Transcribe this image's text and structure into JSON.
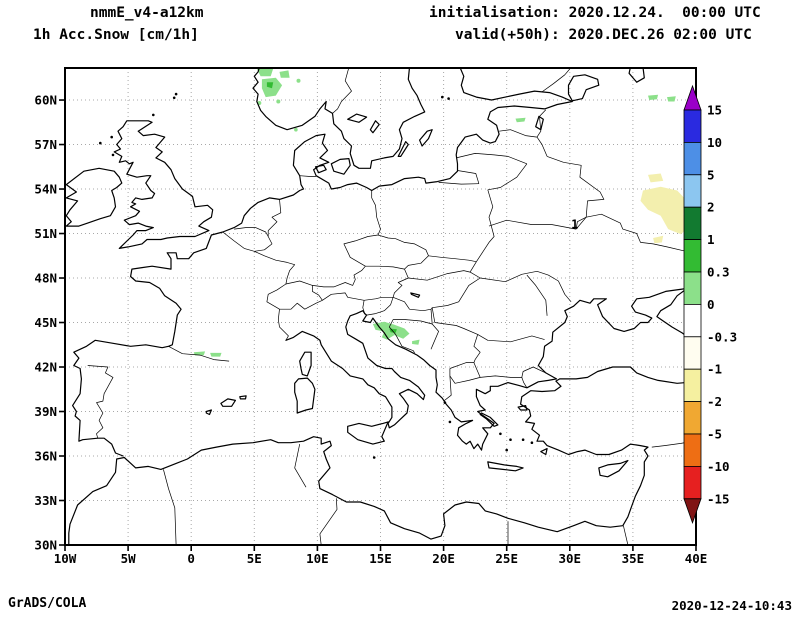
{
  "header": {
    "model": "nmmE_v4-a12km",
    "variable": "1h Acc.Snow [cm/1h]",
    "init": "initialisation: 2020.12.24.  00:00 UTC",
    "valid": "valid(+50h): 2020.DEC.26 02:00 UTC"
  },
  "footer": {
    "brand": "GrADS/COLA",
    "timestamp": "2020-12-24-10:43"
  },
  "chart_data": {
    "type": "heatmap",
    "title": "1h Acc.Snow [cm/1h]",
    "model": "nmmE_v4-a12km",
    "init_time": "2020.12.24. 00:00 UTC",
    "valid_time": "2020.DEC.26 02:00 UTC",
    "lead": "+50h",
    "units": "cm/1h",
    "projection": "latlon",
    "grid": "dotted",
    "lon_range": [
      -10,
      40
    ],
    "lat_range": [
      30,
      62.16
    ],
    "lon_ticks": [
      {
        "v": -10,
        "label": "10W"
      },
      {
        "v": -5,
        "label": "5W"
      },
      {
        "v": 0,
        "label": "0"
      },
      {
        "v": 5,
        "label": "5E"
      },
      {
        "v": 10,
        "label": "10E"
      },
      {
        "v": 15,
        "label": "15E"
      },
      {
        "v": 20,
        "label": "20E"
      },
      {
        "v": 25,
        "label": "25E"
      },
      {
        "v": 30,
        "label": "30E"
      },
      {
        "v": 35,
        "label": "35E"
      },
      {
        "v": 40,
        "label": "40E"
      }
    ],
    "lat_ticks": [
      {
        "v": 30,
        "label": "30N"
      },
      {
        "v": 33,
        "label": "33N"
      },
      {
        "v": 36,
        "label": "36N"
      },
      {
        "v": 39,
        "label": "39N"
      },
      {
        "v": 42,
        "label": "42N"
      },
      {
        "v": 45,
        "label": "45N"
      },
      {
        "v": 48,
        "label": "48N"
      },
      {
        "v": 51,
        "label": "51N"
      },
      {
        "v": 54,
        "label": "54N"
      },
      {
        "v": 57,
        "label": "57N"
      },
      {
        "v": 60,
        "label": "60N"
      }
    ],
    "colorbar": {
      "labels": [
        "15",
        "10",
        "5",
        "2",
        "1",
        "0.3",
        "0",
        "-0.3",
        "-1",
        "-2",
        "-5",
        "-10",
        "-15"
      ],
      "colors": [
        "#9a00c8",
        "#2a2ae0",
        "#4d8fe6",
        "#8cc6f0",
        "#127a30",
        "#33bb33",
        "#8ce08a",
        "#ffffff",
        "#fffdf0",
        "#f5f0a0",
        "#f0a832",
        "#ee6e14",
        "#e62020",
        "#801414"
      ]
    },
    "contour_labels": [
      {
        "text": "1",
        "lon": 30.4,
        "lat": 51.35
      }
    ],
    "snow_patches": [
      {
        "name": "norway-a",
        "color": "#8ce08a",
        "poly": [
          [
            5.2,
            62.12
          ],
          [
            6.5,
            62.12
          ],
          [
            6.3,
            61.6
          ],
          [
            5.5,
            61.6
          ]
        ]
      },
      {
        "name": "norway-b",
        "color": "#8ce08a",
        "poly": [
          [
            5.6,
            61.4
          ],
          [
            6.7,
            61.5
          ],
          [
            7.2,
            61.0
          ],
          [
            6.7,
            60.3
          ],
          [
            5.9,
            60.2
          ],
          [
            5.6,
            60.8
          ]
        ]
      },
      {
        "name": "norway-c",
        "color": "#8ce08a",
        "poly": [
          [
            7.0,
            61.9
          ],
          [
            7.7,
            62.0
          ],
          [
            7.8,
            61.5
          ],
          [
            7.1,
            61.5
          ]
        ]
      },
      {
        "name": "norway-core",
        "color": "#33bb33",
        "poly": [
          [
            6.0,
            61.2
          ],
          [
            6.5,
            61.2
          ],
          [
            6.4,
            60.8
          ],
          [
            6.0,
            60.9
          ]
        ]
      },
      {
        "name": "norway-d",
        "color": "#8ce08a",
        "dot": [
          5.4,
          59.8,
          2
        ]
      },
      {
        "name": "norway-e",
        "color": "#8ce08a",
        "dot": [
          6.9,
          59.9,
          2
        ]
      },
      {
        "name": "norway-f",
        "color": "#8ce08a",
        "dot": [
          8.5,
          61.3,
          2
        ]
      },
      {
        "name": "norway-g",
        "color": "#8ce08a",
        "dot": [
          8.3,
          58.0,
          1.8
        ]
      },
      {
        "name": "estonia",
        "color": "#8ce08a",
        "poly": [
          [
            25.7,
            58.75
          ],
          [
            26.5,
            58.8
          ],
          [
            26.4,
            58.55
          ],
          [
            25.8,
            58.5
          ]
        ]
      },
      {
        "name": "russia-nw-a",
        "color": "#8ce08a",
        "poly": [
          [
            36.2,
            60.3
          ],
          [
            37.0,
            60.35
          ],
          [
            36.9,
            60.05
          ],
          [
            36.3,
            60.0
          ]
        ]
      },
      {
        "name": "russia-nw-b",
        "color": "#8ce08a",
        "poly": [
          [
            37.7,
            60.2
          ],
          [
            38.4,
            60.25
          ],
          [
            38.3,
            59.9
          ],
          [
            37.8,
            59.9
          ]
        ]
      },
      {
        "name": "dinaric-a",
        "color": "#8ce08a",
        "poly": [
          [
            14.4,
            44.9
          ],
          [
            15.3,
            45.05
          ],
          [
            16.1,
            44.85
          ],
          [
            16.9,
            44.6
          ],
          [
            17.3,
            44.25
          ],
          [
            16.8,
            43.9
          ],
          [
            16.1,
            44.15
          ],
          [
            15.5,
            43.85
          ],
          [
            15.1,
            44.0
          ],
          [
            15.3,
            44.4
          ],
          [
            14.6,
            44.5
          ]
        ]
      },
      {
        "name": "dinaric-b",
        "color": "#8ce08a",
        "poly": [
          [
            17.5,
            43.75
          ],
          [
            18.1,
            43.85
          ],
          [
            18.0,
            43.5
          ],
          [
            17.5,
            43.55
          ]
        ]
      },
      {
        "name": "dinaric-core",
        "color": "#33bb33",
        "poly": [
          [
            15.7,
            44.6
          ],
          [
            16.3,
            44.55
          ],
          [
            16.2,
            44.3
          ],
          [
            15.8,
            44.35
          ]
        ]
      },
      {
        "name": "pyrenees-a",
        "color": "#8ce08a",
        "poly": [
          [
            0.2,
            43.0
          ],
          [
            1.1,
            43.05
          ],
          [
            1.0,
            42.8
          ],
          [
            0.3,
            42.78
          ]
        ]
      },
      {
        "name": "pyrenees-b",
        "color": "#8ce08a",
        "poly": [
          [
            1.5,
            42.95
          ],
          [
            2.4,
            42.95
          ],
          [
            2.3,
            42.7
          ],
          [
            1.6,
            42.7
          ]
        ]
      },
      {
        "name": "russia-w-a",
        "color": "#f3efae",
        "poly": [
          [
            35.8,
            53.9
          ],
          [
            37.2,
            54.15
          ],
          [
            38.5,
            53.9
          ],
          [
            39.3,
            53.2
          ],
          [
            39.0,
            52.3
          ],
          [
            39.6,
            51.6
          ],
          [
            38.8,
            50.95
          ],
          [
            37.8,
            51.3
          ],
          [
            37.2,
            52.2
          ],
          [
            36.2,
            52.6
          ],
          [
            35.6,
            53.2
          ]
        ]
      },
      {
        "name": "russia-w-b",
        "color": "#f3efae",
        "poly": [
          [
            36.2,
            54.95
          ],
          [
            37.2,
            55.05
          ],
          [
            37.4,
            54.55
          ],
          [
            36.4,
            54.45
          ]
        ]
      },
      {
        "name": "russia-w-c",
        "color": "#f3efae",
        "poly": [
          [
            36.6,
            50.7
          ],
          [
            37.4,
            50.85
          ],
          [
            37.3,
            50.4
          ],
          [
            36.7,
            50.35
          ]
        ]
      }
    ]
  }
}
